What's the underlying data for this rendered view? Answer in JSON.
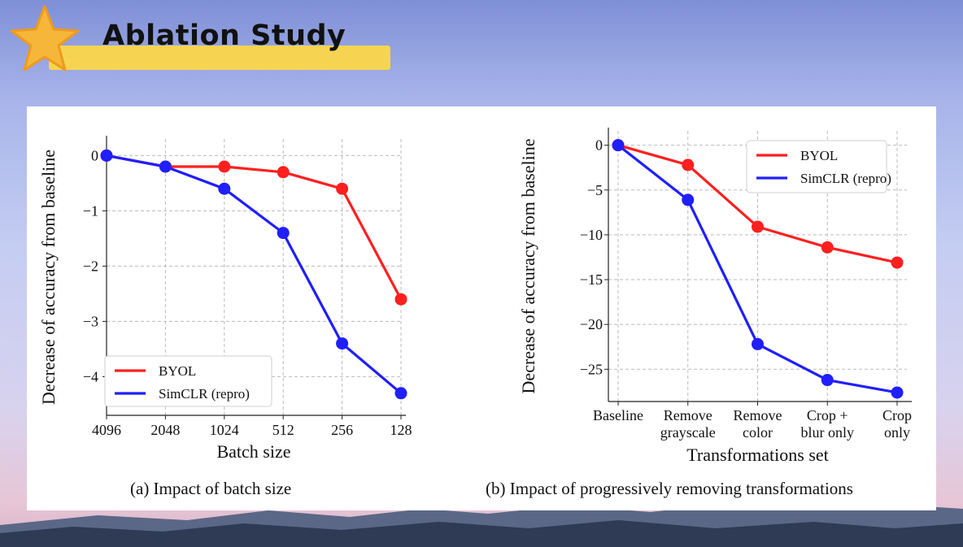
{
  "slide": {
    "title": "Ablation Study",
    "colors": {
      "byol": "#ff1f1f",
      "simclr": "#1f1fff",
      "accent": "#f5c518"
    }
  },
  "charts": [
    {
      "caption": "(a) Impact of batch size",
      "chart_data": {
        "type": "line",
        "title": "",
        "xlabel": "Batch size",
        "ylabel": "Decrease of accuracy from baseline",
        "categories": [
          "4096",
          "2048",
          "1024",
          "512",
          "256",
          "128"
        ],
        "yticks": [
          0,
          -1,
          -2,
          -3,
          -4
        ],
        "ytick_labels": [
          "0",
          "−1",
          "−2",
          "−3",
          "−4"
        ],
        "ylim": [
          -4.7,
          0.3
        ],
        "grid": true,
        "legend_position": "bottom-left",
        "series": [
          {
            "name": "BYOL",
            "color": "#ff1f1f",
            "values": [
              0,
              -0.2,
              -0.2,
              -0.3,
              -0.6,
              -2.6
            ]
          },
          {
            "name": "SimCLR (repro)",
            "color": "#1f1fff",
            "values": [
              0,
              -0.2,
              -0.6,
              -1.4,
              -3.4,
              -4.3
            ]
          }
        ]
      }
    },
    {
      "caption": "(b) Impact of progressively removing transformations",
      "chart_data": {
        "type": "line",
        "title": "",
        "xlabel": "Transformations set",
        "ylabel": "Decrease of accuracy from baseline",
        "categories": [
          [
            "Baseline"
          ],
          [
            "Remove",
            "grayscale"
          ],
          [
            "Remove",
            "color"
          ],
          [
            "Crop +",
            "blur only"
          ],
          [
            "Crop",
            "only"
          ]
        ],
        "yticks": [
          0,
          -5,
          -10,
          -15,
          -20,
          -25
        ],
        "ytick_labels": [
          "0",
          "−5",
          "−10",
          "−15",
          "−20",
          "−25"
        ],
        "ylim": [
          -28.6,
          1.6
        ],
        "grid": true,
        "legend_position": "top-right",
        "series": [
          {
            "name": "BYOL",
            "color": "#ff1f1f",
            "values": [
              0,
              -2.2,
              -9.1,
              -11.4,
              -13.1
            ]
          },
          {
            "name": "SimCLR (repro)",
            "color": "#1f1fff",
            "values": [
              0,
              -6.1,
              -22.2,
              -26.2,
              -27.6
            ]
          }
        ]
      }
    }
  ]
}
